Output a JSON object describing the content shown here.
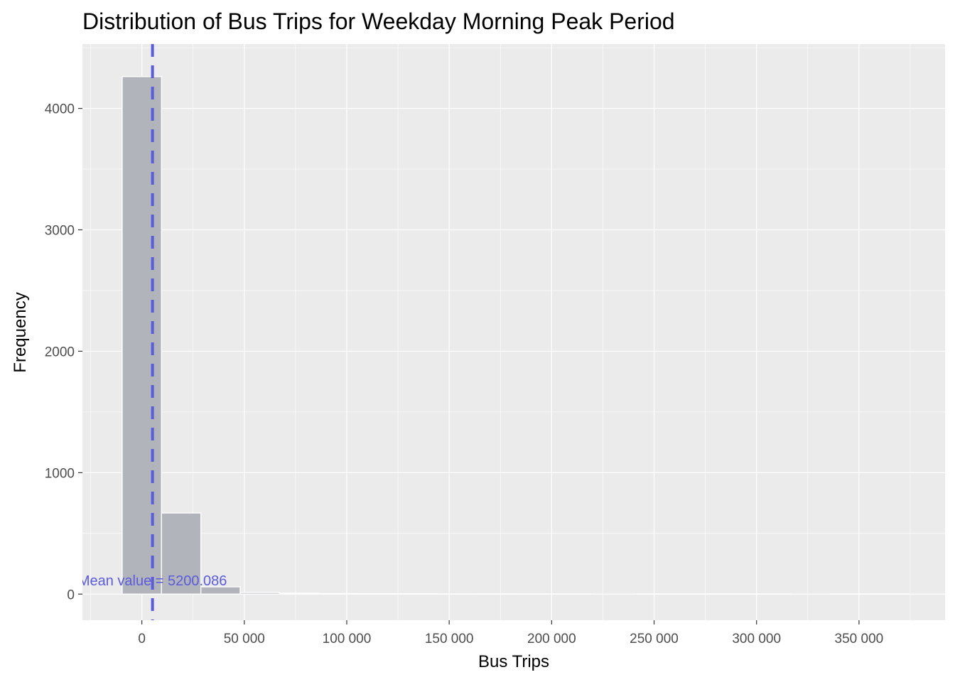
{
  "chart_data": {
    "type": "bar",
    "title": "Distribution of Bus Trips for Weekday Morning Peak Period",
    "xlabel": "Bus Trips",
    "ylabel": "Frequency",
    "xlim": [
      -29000,
      392000
    ],
    "ylim": [
      -215,
      4530
    ],
    "x_ticks": [
      0,
      50000,
      100000,
      150000,
      200000,
      250000,
      300000,
      350000
    ],
    "x_tick_labels": [
      "0",
      "50 000",
      "100 000",
      "150 000",
      "200 000",
      "250 000",
      "300 000",
      "350 000"
    ],
    "y_ticks": [
      0,
      1000,
      2000,
      3000,
      4000
    ],
    "y_tick_labels": [
      "0",
      "1000",
      "2000",
      "3000",
      "4000"
    ],
    "bin_width": 19200,
    "bin_centers": [
      0,
      19200,
      38400,
      57600,
      76800,
      96000,
      115200,
      134400,
      153600,
      172800,
      192000,
      211200,
      230400,
      249600,
      268800,
      288000,
      307200,
      326400,
      345600,
      364800
    ],
    "values": [
      4262,
      668,
      60,
      13,
      7,
      4,
      3,
      3,
      1,
      2,
      1,
      1,
      0,
      1,
      1,
      2,
      1,
      0,
      1,
      2
    ],
    "vline": {
      "x": 5200.086,
      "color": "#5b5bdc",
      "style": "dashed"
    },
    "annotation": {
      "text": "Mean value = 5200.086",
      "x": 5200.086,
      "y": 60,
      "color": "#5b5bdc"
    },
    "grid": true,
    "bar_fill": "#b1b4ba",
    "bar_edge": "#ffffff",
    "panel_background": "#ebebeb"
  }
}
